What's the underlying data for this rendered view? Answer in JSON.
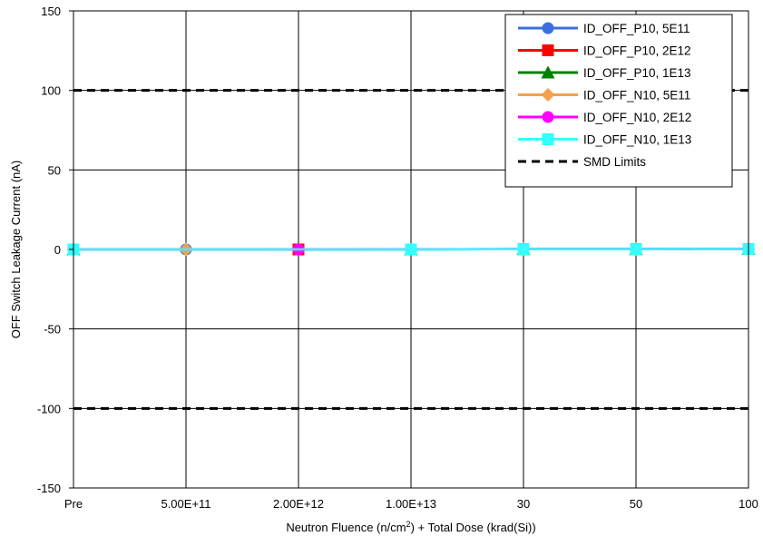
{
  "chart_data": {
    "type": "line",
    "categories": [
      "Pre",
      "5.00E+11",
      "2.00E+12",
      "1.00E+13",
      "30",
      "50",
      "100"
    ],
    "xlabel_prefix": "Neutron Fluence (n/cm",
    "xlabel_sup": "2",
    "xlabel_suffix": ") + Total Dose (krad(Si))",
    "ylabel": "OFF Switch Leakage Current (nA)",
    "ylim": [
      -150,
      150
    ],
    "yticks": [
      -150,
      -100,
      -50,
      0,
      50,
      100,
      150
    ],
    "grid": true,
    "legend_position": "top-right",
    "series": [
      {
        "name": "ID_OFF_P10, 5E11",
        "color": "#3b6fe0",
        "marker": "circle",
        "values": [
          0,
          0,
          null,
          null,
          0.2,
          0.2,
          0.3
        ]
      },
      {
        "name": "ID_OFF_P10, 2E12",
        "color": "#ff0000",
        "marker": "square",
        "values": [
          0,
          null,
          0,
          null,
          0.2,
          0.2,
          0.3
        ]
      },
      {
        "name": "ID_OFF_P10, 1E13",
        "color": "#008000",
        "marker": "triangle",
        "values": [
          0,
          null,
          null,
          0,
          0.2,
          0.2,
          0.3
        ]
      },
      {
        "name": "ID_OFF_N10, 5E11",
        "color": "#f7a04a",
        "marker": "diamond",
        "values": [
          0,
          0,
          null,
          null,
          0.2,
          0.2,
          0.3
        ]
      },
      {
        "name": "ID_OFF_N10, 2E12",
        "color": "#ff00ff",
        "marker": "circle",
        "values": [
          0,
          null,
          0,
          null,
          0.2,
          0.2,
          0.3
        ]
      },
      {
        "name": "ID_OFF_N10, 1E13",
        "color": "#33ffff",
        "marker": "square",
        "values": [
          0,
          null,
          null,
          0,
          0.2,
          0.2,
          0.3
        ]
      }
    ],
    "limits": {
      "name": "SMD Limits",
      "color": "#000000",
      "values": [
        100,
        -100
      ]
    }
  }
}
